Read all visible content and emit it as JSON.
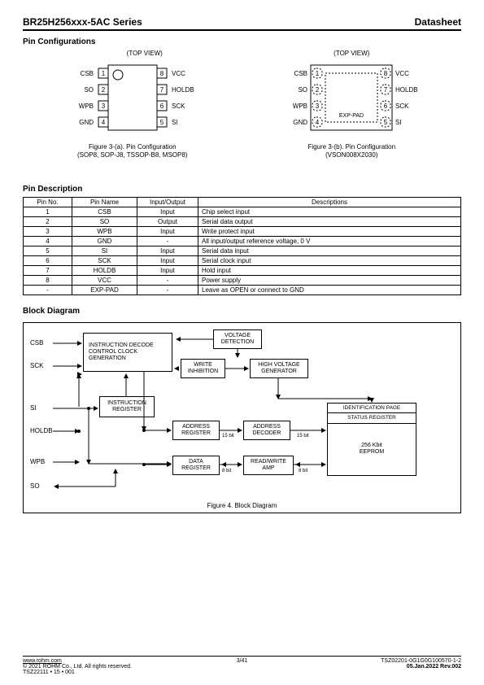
{
  "header": {
    "series": "BR25H256xxx-5AC Series",
    "doc": "Datasheet"
  },
  "pinConfig": {
    "title": "Pin Configurations",
    "topview": "(TOP VIEW)",
    "left_pins": [
      "CSB",
      "SO",
      "WPB",
      "GND"
    ],
    "right_pins": [
      "VCC",
      "HOLDB",
      "SCK",
      "SI"
    ],
    "exp": "EXP-PAD",
    "fig_a": "Figure 3-(a). Pin Configuration\n(SOP8, SOP-J8, TSSOP-B8, MSOP8)",
    "fig_b": "Figure 3-(b). Pin Configuration\n(VSON008X2030)"
  },
  "pinDesc": {
    "title": "Pin Description",
    "cols": [
      "Pin No.",
      "Pin Name",
      "Input/Output",
      "Descriptions"
    ],
    "rows": [
      [
        "1",
        "CSB",
        "Input",
        "Chip select input"
      ],
      [
        "2",
        "SO",
        "Output",
        "Serial data output"
      ],
      [
        "3",
        "WPB",
        "Input",
        "Write protect input"
      ],
      [
        "4",
        "GND",
        "-",
        "All input/output reference voltage, 0 V"
      ],
      [
        "5",
        "SI",
        "Input",
        "Serial data input"
      ],
      [
        "6",
        "SCK",
        "Input",
        "Serial clock input"
      ],
      [
        "7",
        "HOLDB",
        "Input",
        "Hold input"
      ],
      [
        "8",
        "VCC",
        "-",
        "Power supply"
      ],
      [
        "-",
        "EXP-PAD",
        "-",
        "Leave as OPEN or connect to GND"
      ]
    ]
  },
  "block": {
    "title": "Block Diagram",
    "figcap": "Figure 4. Block Diagram",
    "sig": {
      "csb": "CSB",
      "sck": "SCK",
      "si": "SI",
      "holdb": "HOLDB",
      "wpb": "WPB",
      "so": "SO"
    },
    "nodes": {
      "idccg": "INSTRUCTION DECODE\nCONTROL CLOCK\nGENERATION",
      "vdet": "VOLTAGE\nDETECTION",
      "winh": "WRITE\nINHIBITION",
      "hvg": "HIGH VOLTAGE\nGENERATOR",
      "ireg": "INSTRUCTION\nREGISTER",
      "areg": "ADDRESS\nREGISTER",
      "adec": "ADDRESS\nDECODER",
      "dreg": "DATA\nREGISTER",
      "rwa": "READ/WRITE\nAMP",
      "idpage": "IDENTIFICATION  PAGE",
      "statreg": "STATUS  REGISTER",
      "eeprom": "256 Kbit\nEEPROM"
    },
    "bits": {
      "b15": "15 bit",
      "b8": "8 bit"
    }
  },
  "footer": {
    "url": "www.rohm.com",
    "cpy": "© 2021 ROHM Co., Ltd. All rights reserved.",
    "tsz": "TSZ22111 • 15 • 001",
    "page": "3/41",
    "code": "TSZ02201-0G1G0G100570-1-2",
    "date": "05.Jan.2022 Rev.002"
  }
}
